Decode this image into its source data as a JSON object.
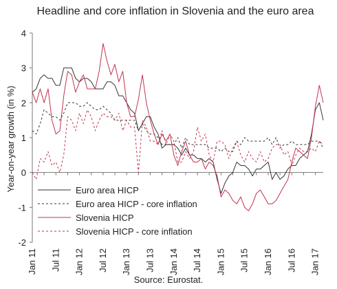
{
  "chart_data": {
    "type": "line",
    "title": "Headline and core inflation in Slovenia and the euro area",
    "ylabel": "Year-on-year growth (in %)",
    "xlabel": "",
    "source": "Source: Eurostat.",
    "ylim": [
      -2,
      4
    ],
    "yticks": [
      -2,
      -1,
      0,
      1,
      2,
      3,
      4
    ],
    "grid": false,
    "legend_position": "bottom-left",
    "x_tick_labels": [
      "Jan 11",
      "Jul 11",
      "Jan 12",
      "Jul 12",
      "Jan 13",
      "Jul 13",
      "Jan 14",
      "Jul 14",
      "Jan 15",
      "Jul 15",
      "Jan 16",
      "Jul 16",
      "Jan 17"
    ],
    "x_start": "2011-01",
    "x_end": "2017-03",
    "series": [
      {
        "name": "Euro area HICP",
        "color": "#333333",
        "dash": "solid",
        "values": [
          2.3,
          2.4,
          2.7,
          2.8,
          2.7,
          2.7,
          2.5,
          2.5,
          3.0,
          3.0,
          3.0,
          2.7,
          2.6,
          2.7,
          2.7,
          2.6,
          2.4,
          2.4,
          2.4,
          2.6,
          2.6,
          2.5,
          2.2,
          2.2,
          2.0,
          1.8,
          1.7,
          1.2,
          1.4,
          1.6,
          1.6,
          1.3,
          1.1,
          0.7,
          0.8,
          0.8,
          0.8,
          0.7,
          0.5,
          0.7,
          0.5,
          0.5,
          0.4,
          0.4,
          0.3,
          0.4,
          0.3,
          -0.2,
          -0.6,
          -0.3,
          -0.1,
          0.0,
          0.3,
          0.2,
          0.2,
          0.1,
          -0.1,
          0.1,
          0.1,
          0.2,
          0.3,
          -0.2,
          0.0,
          -0.2,
          -0.1,
          0.1,
          0.2,
          0.2,
          0.4,
          0.5,
          0.6,
          1.1,
          1.8,
          2.0,
          1.5
        ]
      },
      {
        "name": "Euro area HICP - core inflation",
        "color": "#333333",
        "dash": "dashed",
        "values": [
          1.2,
          1.1,
          1.4,
          1.8,
          1.7,
          1.6,
          1.6,
          1.5,
          1.7,
          2.0,
          2.0,
          2.0,
          1.9,
          1.9,
          2.0,
          1.9,
          1.8,
          1.8,
          1.9,
          1.8,
          1.7,
          1.5,
          1.5,
          1.5,
          1.5,
          1.5,
          1.5,
          1.2,
          1.4,
          1.2,
          1.1,
          1.1,
          1.0,
          0.8,
          0.8,
          0.8,
          0.8,
          1.0,
          0.7,
          1.0,
          0.8,
          0.8,
          0.8,
          0.8,
          0.8,
          0.7,
          0.7,
          0.7,
          0.6,
          0.7,
          0.6,
          0.6,
          0.9,
          0.8,
          1.0,
          0.9,
          0.9,
          0.9,
          0.9,
          0.9,
          1.0,
          0.8,
          1.0,
          0.7,
          0.8,
          0.8,
          0.9,
          0.8,
          0.8,
          0.8,
          0.8,
          0.9,
          0.9,
          0.9,
          0.7
        ]
      },
      {
        "name": "Slovenia HICP",
        "color": "#c0324b",
        "dash": "solid",
        "values": [
          2.3,
          2.0,
          2.4,
          2.0,
          2.4,
          1.5,
          1.1,
          1.2,
          2.2,
          2.9,
          2.8,
          2.3,
          2.6,
          2.8,
          2.4,
          2.4,
          2.4,
          2.9,
          3.7,
          3.2,
          2.8,
          3.1,
          2.6,
          2.9,
          2.0,
          1.6,
          1.6,
          2.1,
          2.8,
          2.0,
          1.5,
          1.1,
          0.8,
          1.1,
          0.9,
          1.1,
          0.5,
          0.2,
          0.6,
          0.9,
          0.5,
          0.3,
          0.3,
          0.4,
          0.1,
          0.3,
          0.2,
          -0.1,
          -0.7,
          -0.5,
          -0.6,
          -0.8,
          -0.9,
          -0.7,
          -1.0,
          -1.1,
          -0.9,
          -0.6,
          -0.5,
          -0.7,
          -0.9,
          -0.9,
          -0.8,
          -0.6,
          -0.4,
          -0.2,
          0.3,
          0.7,
          0.6,
          0.5,
          0.4,
          1.0,
          1.9,
          2.5,
          2.0
        ]
      },
      {
        "name": "Slovenia HICP - core inflation",
        "color": "#c0324b",
        "dash": "dashed",
        "values": [
          0.0,
          -0.2,
          0.4,
          0.3,
          0.6,
          0.2,
          0.3,
          0.0,
          0.5,
          1.6,
          1.5,
          1.2,
          1.7,
          1.4,
          1.8,
          1.6,
          1.2,
          1.5,
          1.7,
          1.6,
          1.6,
          1.5,
          1.7,
          1.2,
          1.5,
          1.3,
          1.3,
          0.0,
          1.5,
          1.3,
          0.9,
          0.9,
          0.8,
          1.2,
          0.8,
          1.1,
          0.9,
          0.3,
          0.3,
          0.6,
          0.4,
          0.6,
          1.3,
          0.9,
          1.1,
          0.5,
          0.3,
          0.9,
          0.9,
          0.8,
          0.4,
          0.7,
          0.9,
          0.5,
          0.3,
          0.6,
          0.4,
          0.3,
          0.6,
          0.3,
          0.4,
          0.7,
          0.8,
          0.8,
          0.5,
          0.6,
          0.2,
          0.5,
          0.7,
          0.6,
          0.6,
          0.7,
          0.6,
          0.9,
          0.8
        ]
      }
    ]
  }
}
